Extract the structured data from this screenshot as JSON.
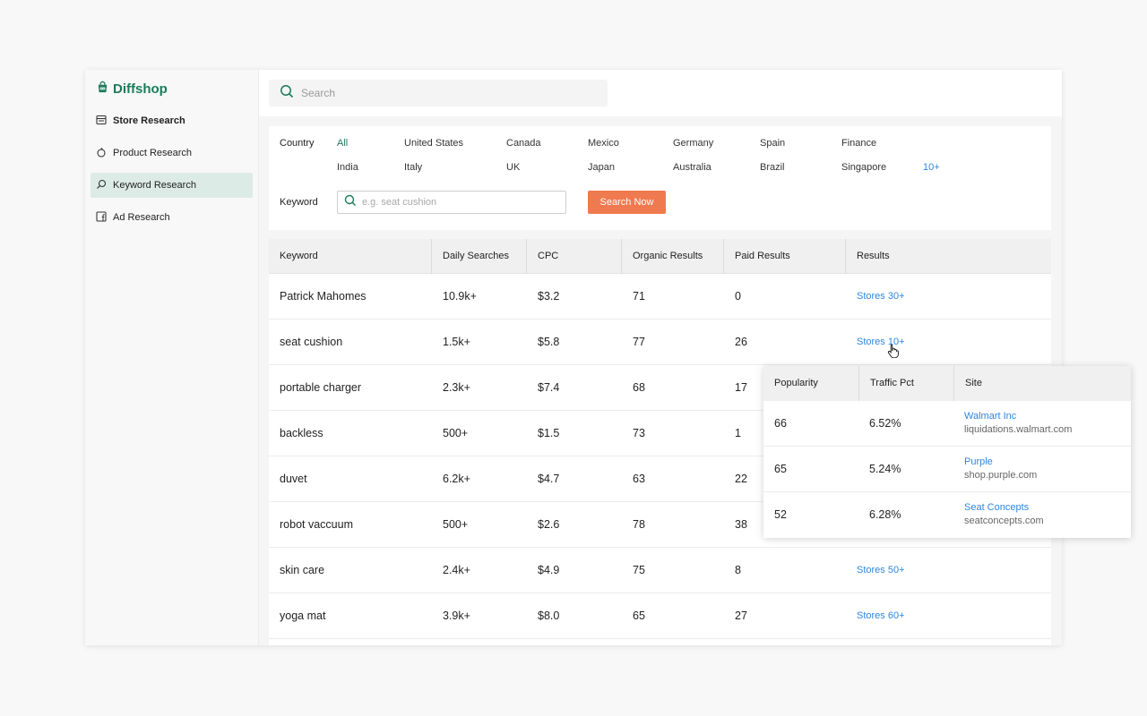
{
  "brand": {
    "name": "Diffshop",
    "accent": "#1d7a5c"
  },
  "sidebar": {
    "items": [
      {
        "label": "Store Research",
        "icon": "store-icon"
      },
      {
        "label": "Product Research",
        "icon": "product-icon"
      },
      {
        "label": "Keyword Research",
        "icon": "search-icon",
        "active": true
      },
      {
        "label": "Ad Research",
        "icon": "facebook-icon"
      }
    ]
  },
  "topbar": {
    "search_placeholder": "Search"
  },
  "filters": {
    "country_label": "Country",
    "countries_row1": [
      "All",
      "United States",
      "Canada",
      "Mexico",
      "Germany",
      "Spain",
      "Finance"
    ],
    "countries_row2": [
      "India",
      "Italy",
      "UK",
      "Japan",
      "Australia",
      "Brazil",
      "Singapore"
    ],
    "more_label": "10+",
    "keyword_label": "Keyword",
    "keyword_placeholder": "e.g. seat cushion",
    "search_button": "Search Now",
    "button_color": "#f07a4f"
  },
  "table": {
    "headers": [
      "Keyword",
      "Daily Searches",
      "CPC",
      "Organic Results",
      "Paid Results",
      "Results"
    ],
    "rows": [
      {
        "keyword": "Patrick Mahomes",
        "daily": "10.9k+",
        "cpc": "$3.2",
        "organic": "71",
        "paid": "0",
        "results": "Stores 30+"
      },
      {
        "keyword": "seat cushion",
        "daily": "1.5k+",
        "cpc": "$5.8",
        "organic": "77",
        "paid": "26",
        "results": "Stores 10+"
      },
      {
        "keyword": "portable charger",
        "daily": "2.3k+",
        "cpc": "$7.4",
        "organic": "68",
        "paid": "17",
        "results": ""
      },
      {
        "keyword": "backless",
        "daily": "500+",
        "cpc": "$1.5",
        "organic": "73",
        "paid": "1",
        "results": ""
      },
      {
        "keyword": "duvet",
        "daily": "6.2k+",
        "cpc": "$4.7",
        "organic": "63",
        "paid": "22",
        "results": ""
      },
      {
        "keyword": "robot vaccuum",
        "daily": "500+",
        "cpc": "$2.6",
        "organic": "78",
        "paid": "38",
        "results": ""
      },
      {
        "keyword": "skin care",
        "daily": "2.4k+",
        "cpc": "$4.9",
        "organic": "75",
        "paid": "8",
        "results": "Stores 50+"
      },
      {
        "keyword": "yoga mat",
        "daily": "3.9k+",
        "cpc": "$8.0",
        "organic": "65",
        "paid": "27",
        "results": "Stores 60+"
      }
    ]
  },
  "popup": {
    "headers": [
      "Popularity",
      "Traffic Pct",
      "Site"
    ],
    "rows": [
      {
        "popularity": "66",
        "traffic": "6.52%",
        "site": "Walmart Inc",
        "domain": "liquidations.walmart.com"
      },
      {
        "popularity": "65",
        "traffic": "5.24%",
        "site": "Purple",
        "domain": "shop.purple.com"
      },
      {
        "popularity": "52",
        "traffic": "6.28%",
        "site": "Seat Concepts",
        "domain": "seatconcepts.com"
      }
    ]
  }
}
